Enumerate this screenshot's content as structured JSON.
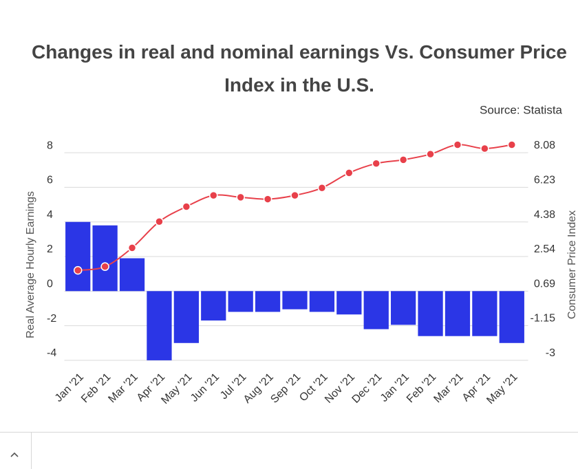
{
  "chart_data": {
    "type": "bar",
    "title": "Changes in real and nominal earnings Vs. Consumer Price Index in the U.S.",
    "source": "Source: Statista",
    "y_label": "Real Average Hourly Earnings",
    "y2_label": "Consumer Price Index",
    "categories": [
      "Jan '21",
      "Feb '21",
      "Mar '21",
      "Apr '21",
      "May '21",
      "Jun '21",
      "Jul '21",
      "Aug '21",
      "Sep '21",
      "Oct '21",
      "Nov '21",
      "Dec '21",
      "Jan '21",
      "Feb '21",
      "Mar '21",
      "Apr '21",
      "May '21"
    ],
    "series": [
      {
        "type": "bar",
        "color": "#2b36e6",
        "values": [
          4.0,
          3.8,
          1.9,
          -4.0,
          -3.0,
          -1.7,
          -1.2,
          -1.2,
          -1.05,
          -1.2,
          -1.35,
          -2.2,
          -1.95,
          -2.6,
          -2.6,
          -2.6,
          -3.0
        ]
      },
      {
        "type": "line",
        "axis": "y2",
        "color": "#e8404a",
        "values": [
          1.8,
          2.0,
          3.0,
          4.4,
          5.2,
          5.8,
          5.7,
          5.6,
          5.8,
          6.2,
          7.0,
          7.5,
          7.7,
          8.0,
          8.5,
          8.3,
          8.5
        ]
      }
    ],
    "ylim": [
      -4.4,
      8.6
    ],
    "yticks": [
      -4,
      -2,
      0,
      2,
      4,
      6,
      8
    ],
    "y2lim": [
      -3.37,
      8.63
    ],
    "y2ticks": [
      -3,
      -1.15,
      0.69,
      2.54,
      4.38,
      6.23,
      8.08
    ],
    "grid": true
  }
}
